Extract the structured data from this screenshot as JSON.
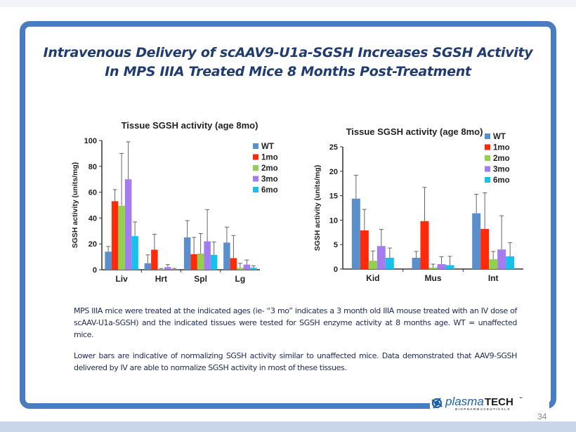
{
  "title_line1": "Intravenous Delivery of scAAV9-U1a-SGSH Increases SGSH Activity",
  "title_line2": "In MPS IIIA Treated Mice 8 Months Post-Treatment",
  "paragraph1": "MPS IIIA mice were treated at the indicated ages (ie- “3 mo” indicates a 3 month old IIIA mouse treated with an IV dose of scAAV-U1a-SGSH) and the indicated tissues were tested for SGSH enzyme activity at 8 months age. WT = unaffected mice.",
  "paragraph2": "Lower bars are indicative of normalizing SGSH activity similar to unaffected mice. Data demonstrated that AAV9-SGSH delivered by IV are able to normalize SGSH activity in most of these tissues.",
  "logo": {
    "name": "plasmaTECH",
    "tm": "™",
    "sub": "BIOPHARMACEUTICALS"
  },
  "page_number": "34",
  "colors": {
    "frame": "#4a7cc2",
    "title": "#1f3b70",
    "WT": "#5b8fcb",
    "1mo": "#ff2a0a",
    "2mo": "#92d050",
    "3mo": "#a57cf0",
    "6mo": "#17c2ea"
  },
  "chart_data": [
    {
      "type": "bar",
      "title": "Tissue SGSH activity (age 8mo)",
      "ylabel": "SGSH activity (units/mg)",
      "xlabel": "",
      "ylim": [
        0,
        100
      ],
      "yticks": [
        0,
        20,
        40,
        60,
        80,
        100
      ],
      "legend": "top-right",
      "grid": false,
      "categories": [
        "Liv",
        "Hrt",
        "Spl",
        "Lg"
      ],
      "series": [
        {
          "name": "WT",
          "values": [
            14,
            5,
            25,
            21
          ],
          "error_upper": [
            18,
            11.5,
            38,
            33
          ]
        },
        {
          "name": "1mo",
          "values": [
            53,
            15.5,
            12,
            9
          ],
          "error_upper": [
            62,
            27.5,
            25,
            26.5
          ]
        },
        {
          "name": "2mo",
          "values": [
            49.5,
            0.5,
            12.5,
            1.5
          ],
          "error_upper": [
            90,
            1,
            28,
            5
          ]
        },
        {
          "name": "3mo",
          "values": [
            70,
            2,
            22,
            4
          ],
          "error_upper": [
            99,
            4,
            46.5,
            7.5
          ]
        },
        {
          "name": "6mo",
          "values": [
            26,
            0.5,
            11.5,
            1.5
          ],
          "error_upper": [
            37,
            1,
            21.5,
            3
          ]
        }
      ]
    },
    {
      "type": "bar",
      "title": "Tissue SGSH activity (age 8mo)",
      "ylabel": "SGSH activity (units/mg)",
      "xlabel": "",
      "ylim": [
        0,
        25
      ],
      "yticks": [
        0,
        5,
        10,
        15,
        20,
        25
      ],
      "legend": "top-right",
      "grid": false,
      "categories": [
        "Kid",
        "Mus",
        "Int"
      ],
      "series": [
        {
          "name": "WT",
          "values": [
            14.4,
            2.3,
            11.4
          ],
          "error_upper": [
            19.2,
            3.6,
            15.3
          ]
        },
        {
          "name": "1mo",
          "values": [
            7.9,
            9.8,
            8.2
          ],
          "error_upper": [
            12.2,
            16.7,
            15.6
          ]
        },
        {
          "name": "2mo",
          "values": [
            1.7,
            0.3,
            2
          ],
          "error_upper": [
            3.7,
            1,
            3.6
          ]
        },
        {
          "name": "3mo",
          "values": [
            4.7,
            1,
            4
          ],
          "error_upper": [
            8.1,
            2.5,
            10.9
          ]
        },
        {
          "name": "6mo",
          "values": [
            2.3,
            0.8,
            2.6
          ],
          "error_upper": [
            4.3,
            2.6,
            5.4
          ]
        }
      ]
    }
  ]
}
